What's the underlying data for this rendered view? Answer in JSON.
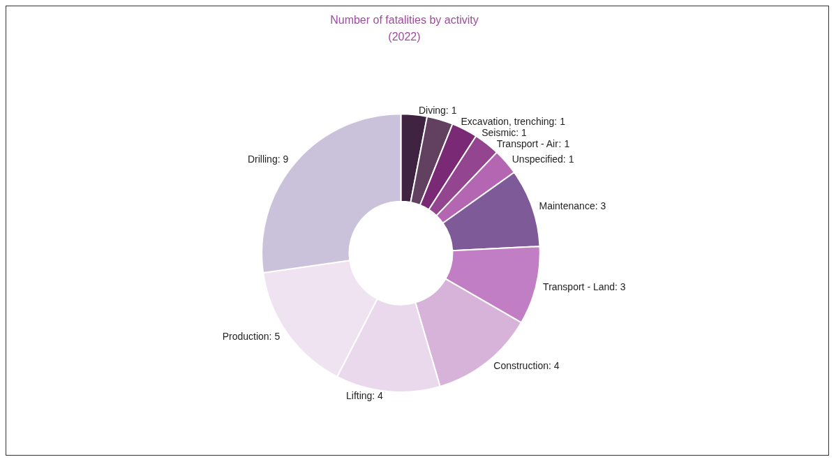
{
  "chart_data": {
    "type": "donut",
    "title": "Number of fatalities by activity\n(2022)",
    "categories": [
      "Diving",
      "Excavation, trenching",
      "Seismic",
      "Transport - Air",
      "Unspecified",
      "Maintenance",
      "Transport - Land",
      "Construction",
      "Lifting",
      "Production",
      "Drilling"
    ],
    "values": [
      1,
      1,
      1,
      1,
      1,
      3,
      3,
      4,
      4,
      5,
      9
    ],
    "value_labels": [
      ": 1",
      ": 1",
      ": 1",
      ": 1",
      ": 1",
      ": 3",
      ": 3",
      ": 4",
      ": 4",
      ": 5",
      ": 9"
    ],
    "colors": [
      "#3f2340",
      "#62405f",
      "#7a2a74",
      "#93468f",
      "#b466b2",
      "#7e5a98",
      "#c27ec4",
      "#d7b3da",
      "#ead8ec",
      "#efe2f1",
      "#cac2da"
    ],
    "legend": false
  }
}
